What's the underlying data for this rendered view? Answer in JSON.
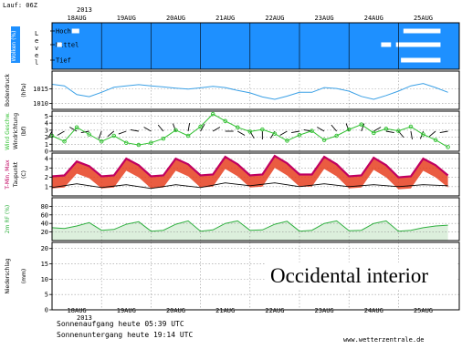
{
  "header": {
    "run_label": "Lauf: 06Z",
    "year": "2013"
  },
  "footer": {
    "year": "2013",
    "sunrise": "Sonnenaufgang heute 05:39 UTC",
    "sunset": "Sonnenuntergang heute 19:14 UTC",
    "site": "www.wetterzentrale.de"
  },
  "watermark": "Occidental interior",
  "colors": {
    "cloud_panel": "#1e90ff",
    "cloud": "#ffffff",
    "pressure": "#3aa0e6",
    "wind": "#30c030",
    "temperature": "#c00060",
    "temperature_band": "#e64020",
    "dewpoint": "#000000",
    "humidity": "#30b040",
    "humidity_fill": "#dcefdc",
    "grid": "#999999"
  },
  "chart_data": [
    {
      "type": "heatmap",
      "panel": "clouds",
      "ylabel": "Wolken (%)",
      "levels": [
        "Hoch",
        "Mittel",
        "Tief"
      ],
      "level_axis_label": [
        "L",
        "e",
        "v",
        "e",
        "l"
      ],
      "categories": [
        "18AUG",
        "19AUG",
        "20AUG",
        "21AUG",
        "22AUG",
        "23AUG",
        "24AUG",
        "25AUG"
      ],
      "cloud_events": [
        {
          "level": "Hoch",
          "day_start": 0.4,
          "day_end": 0.55
        },
        {
          "level": "Hoch",
          "day_start": 7.1,
          "day_end": 7.85
        },
        {
          "level": "Mittel",
          "day_start": 0.1,
          "day_end": 0.2
        },
        {
          "level": "Mittel",
          "day_start": 6.65,
          "day_end": 6.85
        },
        {
          "level": "Mittel",
          "day_start": 6.95,
          "day_end": 7.85
        },
        {
          "level": "Tief",
          "day_start": 7.05,
          "day_end": 7.85
        }
      ]
    },
    {
      "type": "line",
      "panel": "pressure",
      "ylabel": "Bodendruck",
      "unit": "(hPa)",
      "yticks": [
        1010,
        1015
      ],
      "ylim": [
        1008,
        1021
      ],
      "x": [
        0,
        0.25,
        0.5,
        0.75,
        1,
        1.25,
        1.5,
        1.75,
        2,
        2.25,
        2.5,
        2.75,
        3,
        3.25,
        3.5,
        3.75,
        4,
        4.25,
        4.5,
        4.75,
        5,
        5.25,
        5.5,
        5.75,
        6,
        6.25,
        6.5,
        6.75,
        7,
        7.25,
        7.5,
        7.75,
        8
      ],
      "y": [
        1016.5,
        1016,
        1013,
        1012.3,
        1013.8,
        1015.5,
        1016,
        1016.4,
        1016,
        1015.6,
        1015.2,
        1014.9,
        1015.3,
        1015.8,
        1015.4,
        1014.4,
        1013.6,
        1012.2,
        1011.4,
        1012.5,
        1013.8,
        1013.8,
        1015.4,
        1015.1,
        1014.2,
        1012.4,
        1011.4,
        1012.7,
        1014.2,
        1016,
        1016.8,
        1015.4,
        1013.8
      ]
    },
    {
      "type": "line",
      "panel": "wind",
      "ylabel": "Wind Geschw.",
      "ylabel2": "Windrichtung",
      "unit": "(bf)",
      "yticks": [
        0,
        1,
        2,
        3,
        4,
        5
      ],
      "ylim": [
        0,
        5.7
      ],
      "x": [
        0,
        0.25,
        0.5,
        0.75,
        1,
        1.25,
        1.5,
        1.75,
        2,
        2.25,
        2.5,
        2.75,
        3,
        3.25,
        3.5,
        3.75,
        4,
        4.25,
        4.5,
        4.75,
        5,
        5.25,
        5.5,
        5.75,
        6,
        6.25,
        6.5,
        6.75,
        7,
        7.25,
        7.5,
        7.75,
        8
      ],
      "y": [
        2.2,
        1.4,
        3.4,
        2.4,
        1.4,
        2.2,
        1.2,
        0.9,
        1.2,
        1.8,
        3,
        2.2,
        3.5,
        5.3,
        4.3,
        3.4,
        2.8,
        3.1,
        2.5,
        1.5,
        2.3,
        2.9,
        1.6,
        2.2,
        3.1,
        3.8,
        2.6,
        3.2,
        2.9,
        3.5,
        2.4,
        1.6,
        0.6
      ],
      "direction_deg": [
        210,
        240,
        300,
        260,
        200,
        230,
        250,
        280,
        300,
        320,
        340,
        10,
        30,
        60,
        90,
        120,
        150,
        180,
        210,
        240,
        260,
        280,
        300,
        320,
        340,
        20,
        60,
        100,
        140,
        170,
        200,
        230,
        260
      ]
    },
    {
      "type": "line",
      "panel": "temperature",
      "ylabel": "T-Min, Max",
      "ylabel2": "Taupunkt",
      "unit": "(C)",
      "yticks": [
        1,
        2,
        3,
        4
      ],
      "ylim": [
        0,
        4.6
      ],
      "series": [
        {
          "name": "Temperatur",
          "x": [
            0,
            0.25,
            0.5,
            0.75,
            1,
            1.25,
            1.5,
            1.75,
            2,
            2.25,
            2.5,
            2.75,
            3,
            3.25,
            3.5,
            3.75,
            4,
            4.25,
            4.5,
            4.75,
            5,
            5.25,
            5.5,
            5.75,
            6,
            6.25,
            6.5,
            6.75,
            7,
            7.25,
            7.5,
            7.75,
            8
          ],
          "y": [
            2.1,
            2.2,
            3.7,
            3.2,
            2.1,
            2.2,
            4,
            3.3,
            2.1,
            2.2,
            4,
            3.4,
            2.2,
            2.3,
            4.2,
            3.4,
            2.2,
            2.3,
            4.3,
            3.5,
            2.3,
            2.3,
            4.2,
            3.4,
            2.1,
            2.2,
            4.1,
            3.3,
            2,
            2.1,
            4,
            3.3,
            2.2
          ]
        },
        {
          "name": "Taupunkt",
          "x": [
            0,
            0.5,
            1,
            1.5,
            2,
            2.5,
            3,
            3.5,
            4,
            4.5,
            5,
            5.5,
            6,
            6.5,
            7,
            7.5,
            8
          ],
          "y": [
            0.9,
            1.3,
            0.9,
            1.2,
            0.8,
            1.2,
            0.9,
            1.4,
            1.1,
            1.4,
            1,
            1.3,
            1,
            1.2,
            1,
            1.2,
            1.1
          ]
        }
      ]
    },
    {
      "type": "area",
      "panel": "humidity",
      "ylabel": "2m RF (%)",
      "yticks": [
        20,
        40,
        60,
        80
      ],
      "ylim": [
        0,
        100
      ],
      "x": [
        0,
        0.25,
        0.5,
        0.75,
        1,
        1.25,
        1.5,
        1.75,
        2,
        2.25,
        2.5,
        2.75,
        3,
        3.25,
        3.5,
        3.75,
        4,
        4.25,
        4.5,
        4.75,
        5,
        5.25,
        5.5,
        5.75,
        6,
        6.25,
        6.5,
        6.75,
        7,
        7.25,
        7.5,
        7.75,
        8
      ],
      "y": [
        30,
        28,
        34,
        42,
        24,
        26,
        38,
        44,
        22,
        24,
        38,
        46,
        22,
        25,
        40,
        46,
        24,
        25,
        38,
        45,
        22,
        24,
        40,
        46,
        23,
        24,
        40,
        46,
        22,
        24,
        30,
        34,
        36
      ]
    },
    {
      "type": "bar",
      "panel": "precipitation",
      "ylabel": "Niederschlag",
      "unit": "(mm)",
      "yticks": [
        0,
        5,
        10,
        15,
        20
      ],
      "ylim": [
        0,
        22
      ],
      "x": [],
      "values": []
    }
  ]
}
